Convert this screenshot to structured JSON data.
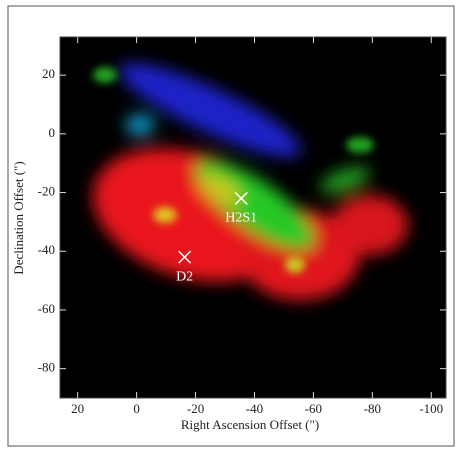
{
  "chart_data": {
    "type": "image",
    "xlabel": "Right Ascension Offset (\")",
    "ylabel": "Declination Offset (\")",
    "xlim": [
      26,
      -105
    ],
    "ylim": [
      -90,
      33
    ],
    "xticks": [
      20,
      0,
      -20,
      -40,
      -60,
      -80,
      -100
    ],
    "yticks": [
      20,
      0,
      -20,
      -40,
      -60,
      -80
    ],
    "points": {
      "x": [
        -35.5,
        -16.3
      ],
      "y": [
        -22,
        -42
      ],
      "labels": [
        "H2S1",
        "D2"
      ],
      "color": "#ffffff"
    }
  }
}
